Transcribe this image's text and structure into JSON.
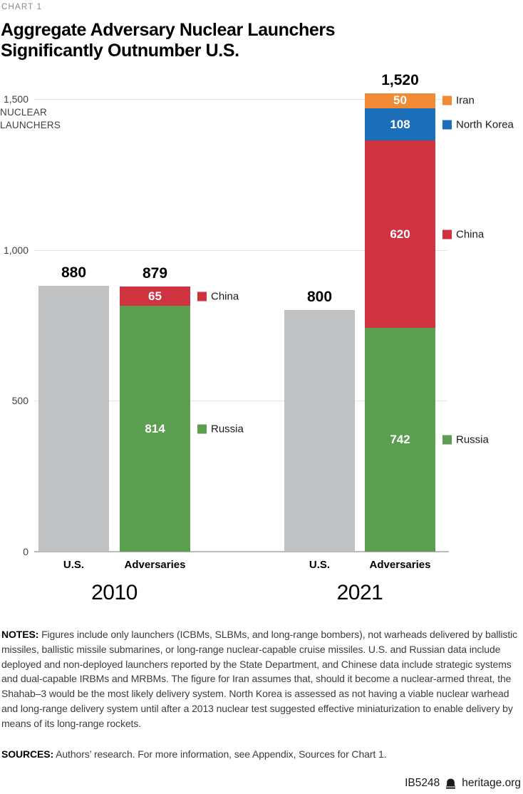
{
  "page": {
    "kicker": "CHART 1",
    "title_line1": "Aggregate Adversary Nuclear Launchers",
    "title_line2": "Significantly Outnumber U.S."
  },
  "chart_data": {
    "type": "bar",
    "stacked": true,
    "title": "Aggregate Adversary Nuclear Launchers Significantly Outnumber U.S.",
    "ylabel": "NUCLEAR LAUNCHERS",
    "ylim": [
      0,
      1500
    ],
    "yticks": [
      {
        "value": 0,
        "label": "0"
      },
      {
        "value": 500,
        "label": "500"
      },
      {
        "value": 1000,
        "label": "1,000"
      },
      {
        "value": 1500,
        "label": "1,500"
      }
    ],
    "grid": true,
    "legend_position": "right-of-adversary-bars",
    "colors": {
      "us_gray": "#c0c1c3",
      "russia_green": "#5c9e4f",
      "china_red": "#d03340",
      "north_korea_blue": "#1b6fba",
      "iran_orange": "#f18a34"
    },
    "groups": [
      {
        "year": "2010",
        "bars": [
          {
            "label": "U.S.",
            "total": 880,
            "total_label": "880",
            "show_legend": false,
            "segments": [
              {
                "name": "U.S.",
                "value": 880,
                "value_label": "",
                "color": "#c0c1c3",
                "show_value": false
              }
            ]
          },
          {
            "label": "Adversaries",
            "total": 879,
            "total_label": "879",
            "show_legend": true,
            "segments": [
              {
                "name": "Russia",
                "value": 814,
                "value_label": "814",
                "color": "#5c9e4f",
                "show_value": true
              },
              {
                "name": "China",
                "value": 65,
                "value_label": "65",
                "color": "#d03340",
                "show_value": true
              }
            ]
          }
        ]
      },
      {
        "year": "2021",
        "bars": [
          {
            "label": "U.S.",
            "total": 800,
            "total_label": "800",
            "show_legend": false,
            "segments": [
              {
                "name": "U.S.",
                "value": 800,
                "value_label": "",
                "color": "#c0c1c3",
                "show_value": false
              }
            ]
          },
          {
            "label": "Adversaries",
            "total": 1520,
            "total_label": "1,520",
            "show_legend": true,
            "segments": [
              {
                "name": "Russia",
                "value": 742,
                "value_label": "742",
                "color": "#5c9e4f",
                "show_value": true
              },
              {
                "name": "China",
                "value": 620,
                "value_label": "620",
                "color": "#d03340",
                "show_value": true
              },
              {
                "name": "North Korea",
                "value": 108,
                "value_label": "108",
                "color": "#1b6fba",
                "show_value": true
              },
              {
                "name": "Iran",
                "value": 50,
                "value_label": "50",
                "color": "#f18a34",
                "show_value": true
              }
            ]
          }
        ]
      }
    ]
  },
  "notes": {
    "label": "NOTES:",
    "text": " Figures include only launchers (ICBMs, SLBMs, and long-range bombers), not warheads delivered by ballistic missiles, ballistic missile submarines, or long-range nuclear-capable cruise missiles. U.S. and Russian data include deployed and non-deployed launchers reported by the State Department, and Chinese data include strategic systems and dual-capable IRBMs and MRBMs. The figure for Iran assumes that, should it become a nuclear-armed threat, the Shahab–3 would be the most likely delivery system. North Korea is assessed as not having a viable nuclear warhead and long-range delivery system until after a 2013 nuclear test suggested effective miniaturization to enable delivery by means of its long-range rockets."
  },
  "sources": {
    "label": "SOURCES:",
    "text": " Authors’ research. For more information, see Appendix, Sources for Chart 1."
  },
  "footer": {
    "doc_id": "IB5248",
    "site": "heritage.org",
    "logo_icon": "liberty-bell-icon"
  }
}
